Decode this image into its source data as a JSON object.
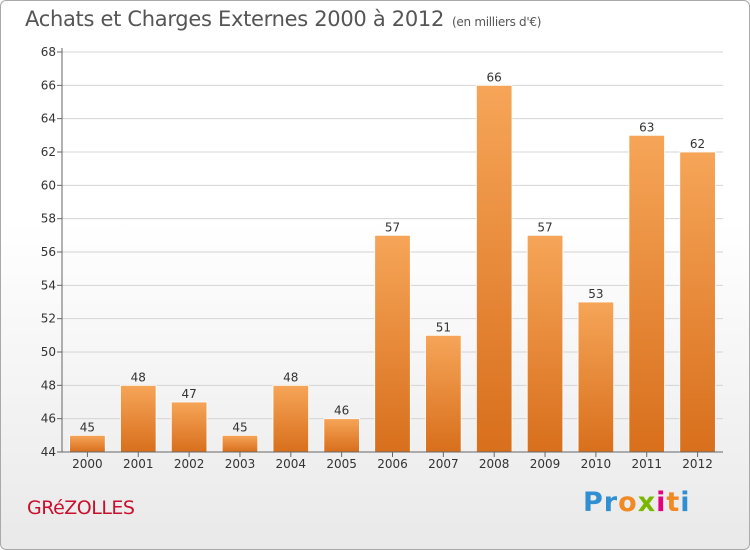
{
  "header": {
    "title": "Achats et Charges Externes 2000 à 2012",
    "subtitle": "(en milliers d'€)"
  },
  "footer": {
    "commune": "GRéZOLLES",
    "logo_letters": [
      "P",
      "r",
      "o",
      "x",
      "i",
      "t",
      "i"
    ],
    "logo_colors": [
      "#2f8fd1",
      "#2f8fd1",
      "#f08a24",
      "#7ab800",
      "#e6007e",
      "#f08a24",
      "#2f8fd1"
    ]
  },
  "colors": {
    "bar_top": "#f6a558",
    "bar_bottom": "#d86f1c",
    "grid": "#d4d4d4",
    "axis": "#666666"
  },
  "chart_data": {
    "type": "bar",
    "title": "Achats et Charges Externes 2000 à 2012",
    "subtitle": "(en milliers d'€)",
    "xlabel": "",
    "ylabel": "",
    "categories": [
      "2000",
      "2001",
      "2002",
      "2003",
      "2004",
      "2005",
      "2006",
      "2007",
      "2008",
      "2009",
      "2010",
      "2011",
      "2012"
    ],
    "values": [
      45,
      48,
      47,
      45,
      48,
      46,
      57,
      51,
      66,
      57,
      53,
      63,
      62
    ],
    "ylim": [
      44,
      68
    ],
    "yticks": [
      44,
      46,
      48,
      50,
      52,
      54,
      56,
      58,
      60,
      62,
      64,
      66,
      68
    ],
    "grid": true,
    "legend": "none"
  }
}
